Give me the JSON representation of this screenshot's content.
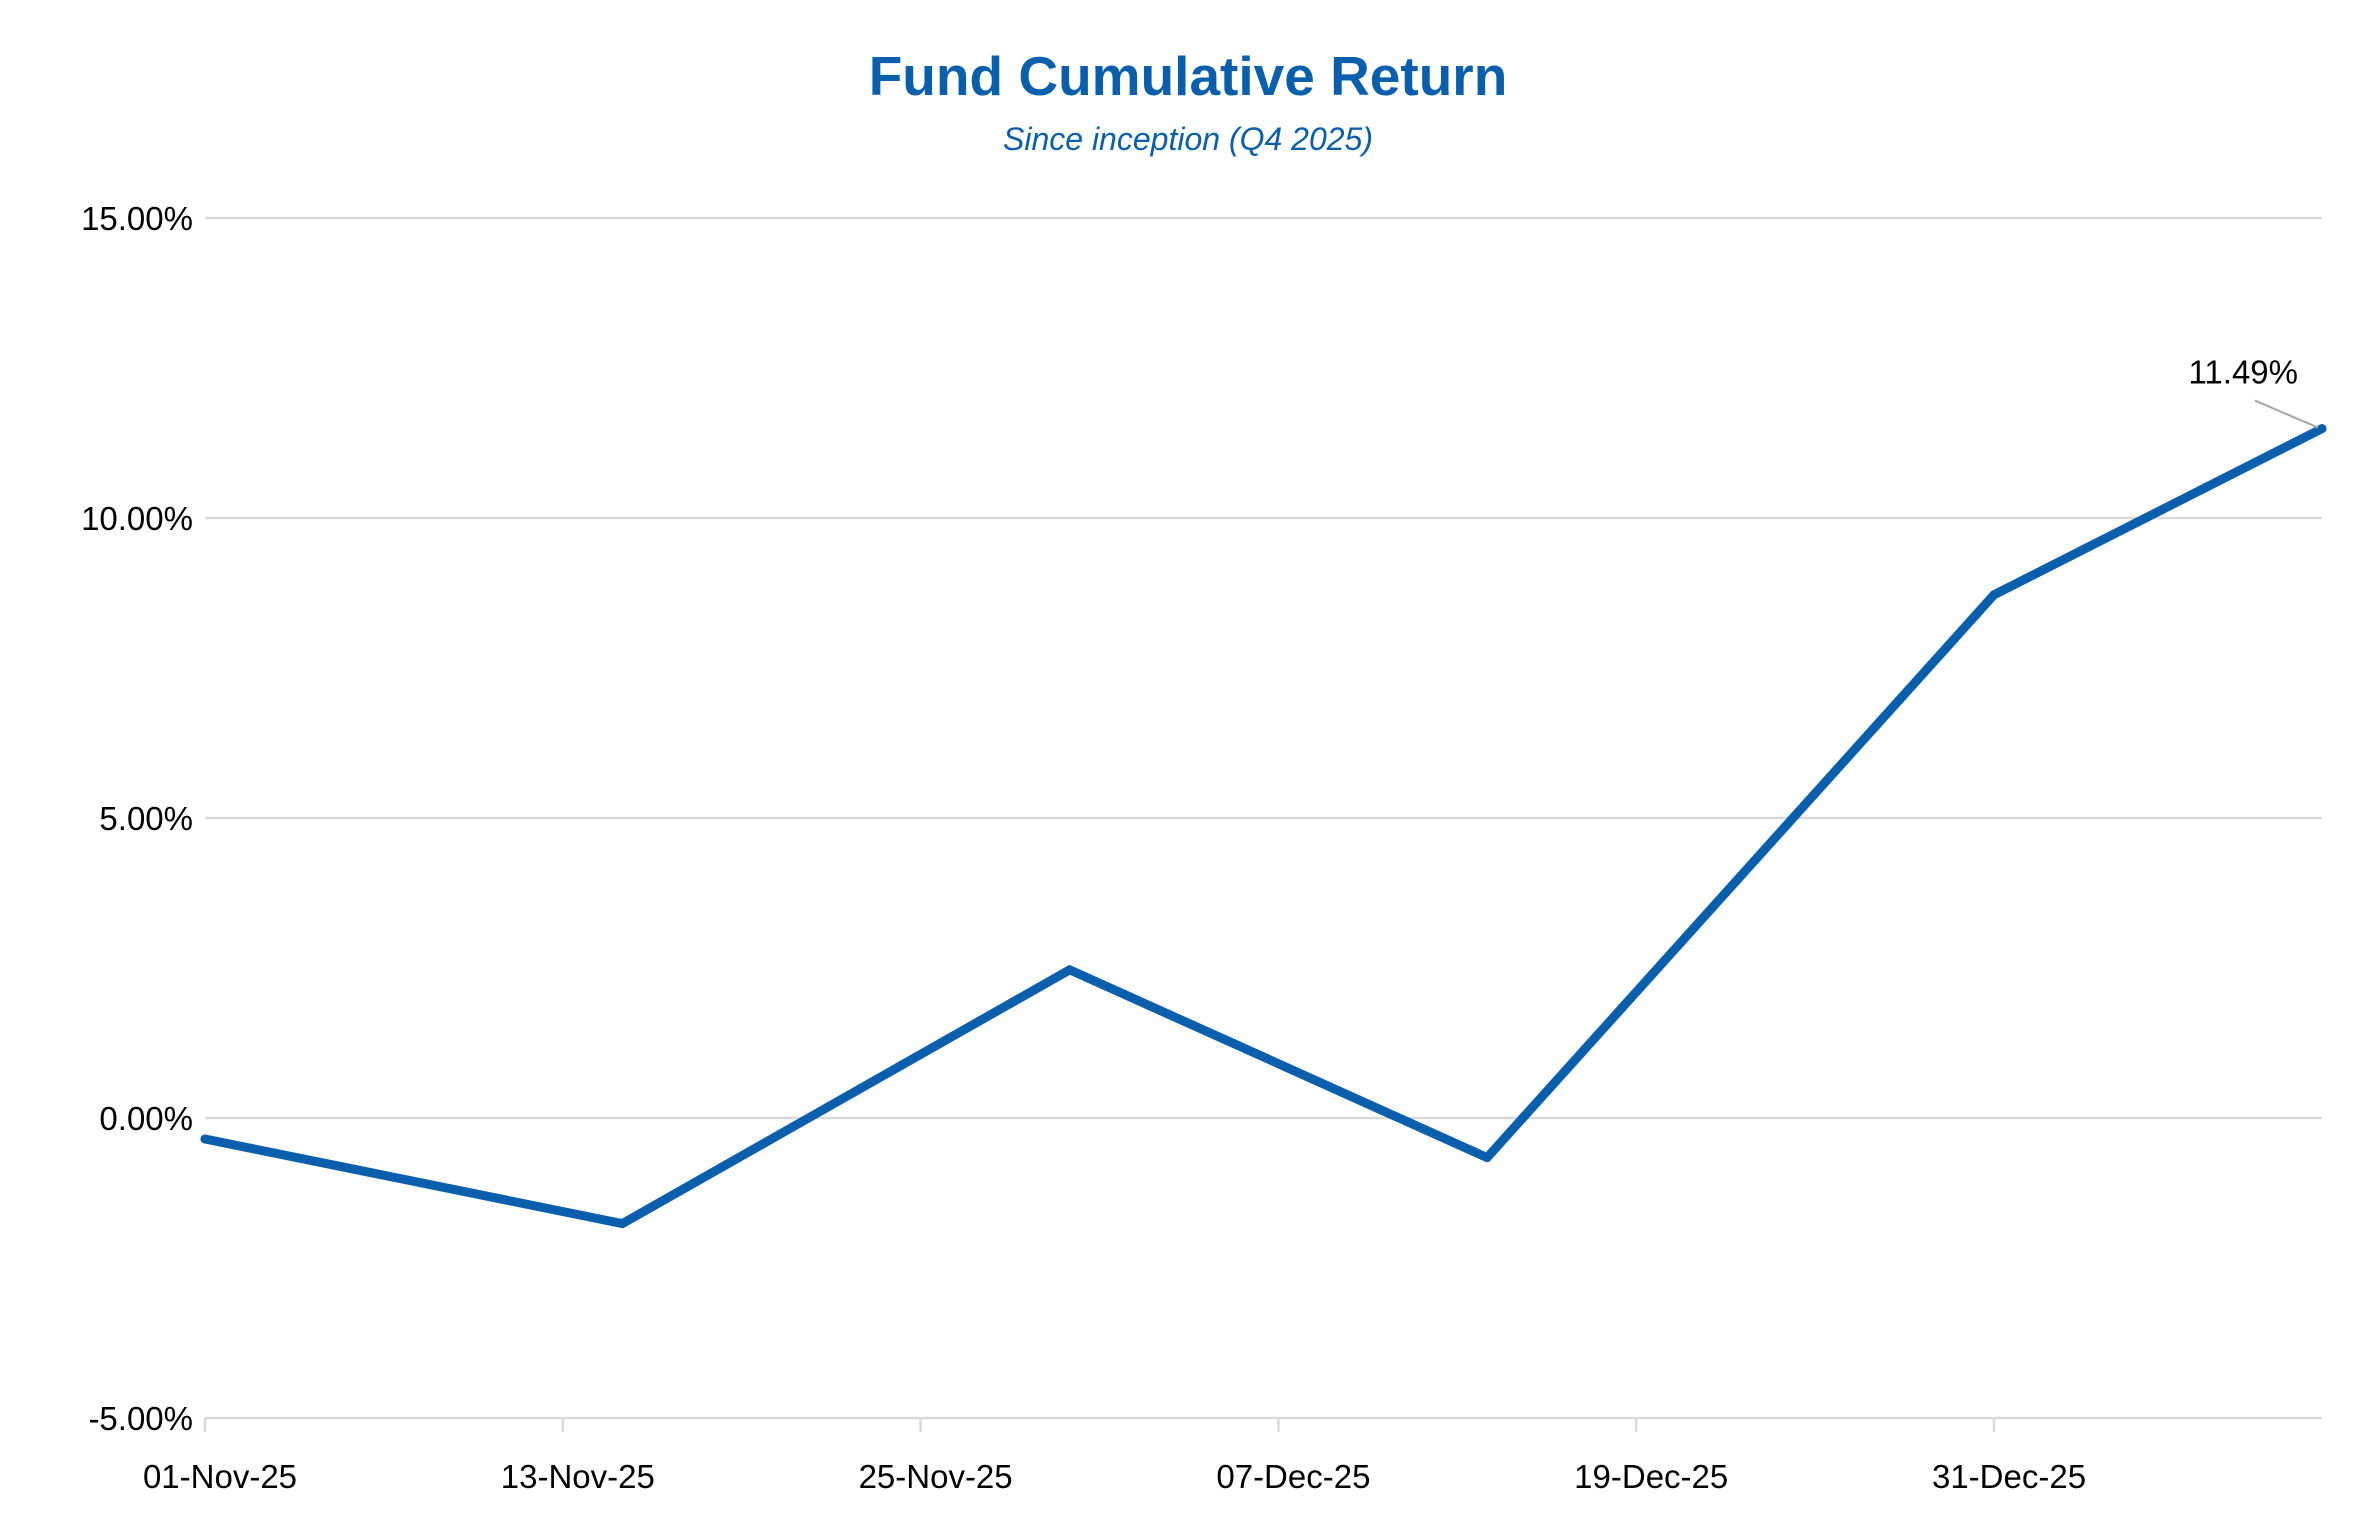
{
  "chart_data": {
    "type": "line",
    "title": "Fund Cumulative Return",
    "subtitle": "Since inception (Q4 2025)",
    "xlabel": "",
    "ylabel": "",
    "x_tick_labels": [
      "01-Nov-25",
      "13-Nov-25",
      "25-Nov-25",
      "07-Dec-25",
      "19-Dec-25",
      "31-Dec-25"
    ],
    "y_tick_labels": [
      "15.00%",
      "10.00%",
      "5.00%",
      "0.00%",
      "-5.00%"
    ],
    "ylim": [
      -5,
      15
    ],
    "xlim": [
      "2025-11-01",
      "2026-01-11"
    ],
    "grid": true,
    "legend": "none",
    "series": [
      {
        "color": "#0a5fad",
        "x": [
          "2025-11-01",
          "2025-11-15",
          "2025-11-30",
          "2025-12-14",
          "2025-12-31",
          "2026-01-11"
        ],
        "y": [
          -0.35,
          -1.76,
          2.47,
          -0.66,
          8.72,
          11.49
        ]
      }
    ],
    "annotations": [
      {
        "text": "11.49%",
        "x": "2026-01-11",
        "y": 11.49
      }
    ]
  }
}
